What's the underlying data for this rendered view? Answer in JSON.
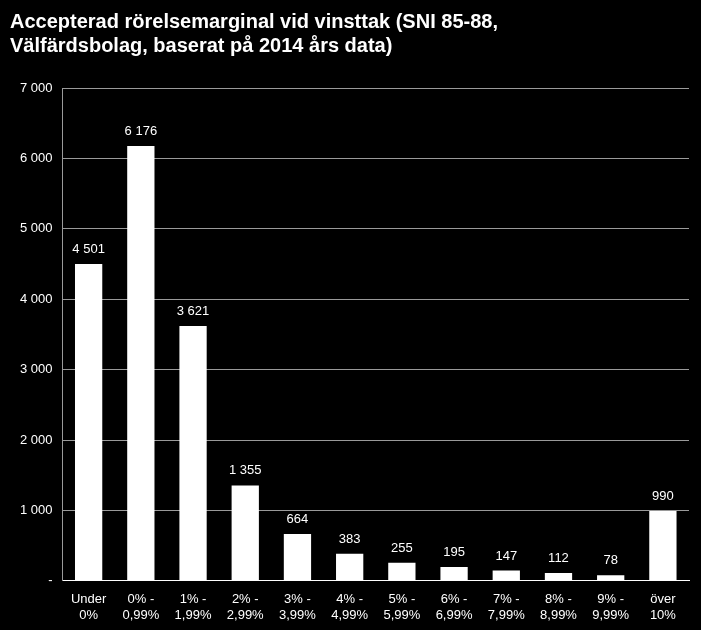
{
  "chart_data": {
    "type": "bar",
    "title": [
      "Accepterad rörelsemarginal vid vinsttak (SNI 85-88,",
      "Välfärdsbolag, baserat på 2014 års data)"
    ],
    "categories": [
      [
        "Under",
        "0%"
      ],
      [
        "0% -",
        "0,99%"
      ],
      [
        "1% -",
        "1,99%"
      ],
      [
        "2% -",
        "2,99%"
      ],
      [
        "3% -",
        "3,99%"
      ],
      [
        "4% -",
        "4,99%"
      ],
      [
        "5% -",
        "5,99%"
      ],
      [
        "6% -",
        "6,99%"
      ],
      [
        "7% -",
        "7,99%"
      ],
      [
        "8% -",
        "8,99%"
      ],
      [
        "9% -",
        "9,99%"
      ],
      [
        "över",
        "10%"
      ]
    ],
    "values": [
      4501,
      6176,
      3621,
      1355,
      664,
      383,
      255,
      195,
      147,
      112,
      78,
      990
    ],
    "value_labels": [
      "4 501",
      "6 176",
      "3 621",
      "1 355",
      "664",
      "383",
      "255",
      "195",
      "147",
      "112",
      "78",
      "990"
    ],
    "data_labels": true,
    "color": "#ffffff",
    "ylim": [
      0,
      7000
    ],
    "yticks": [
      {
        "value": 0,
        "label": "-"
      },
      {
        "value": 1000,
        "label": "1 000"
      },
      {
        "value": 2000,
        "label": "2 000"
      },
      {
        "value": 3000,
        "label": "3 000"
      },
      {
        "value": 4000,
        "label": "4 000"
      },
      {
        "value": 5000,
        "label": "5 000"
      },
      {
        "value": 6000,
        "label": "6 000"
      },
      {
        "value": 7000,
        "label": "7 000"
      }
    ],
    "grid": true
  }
}
